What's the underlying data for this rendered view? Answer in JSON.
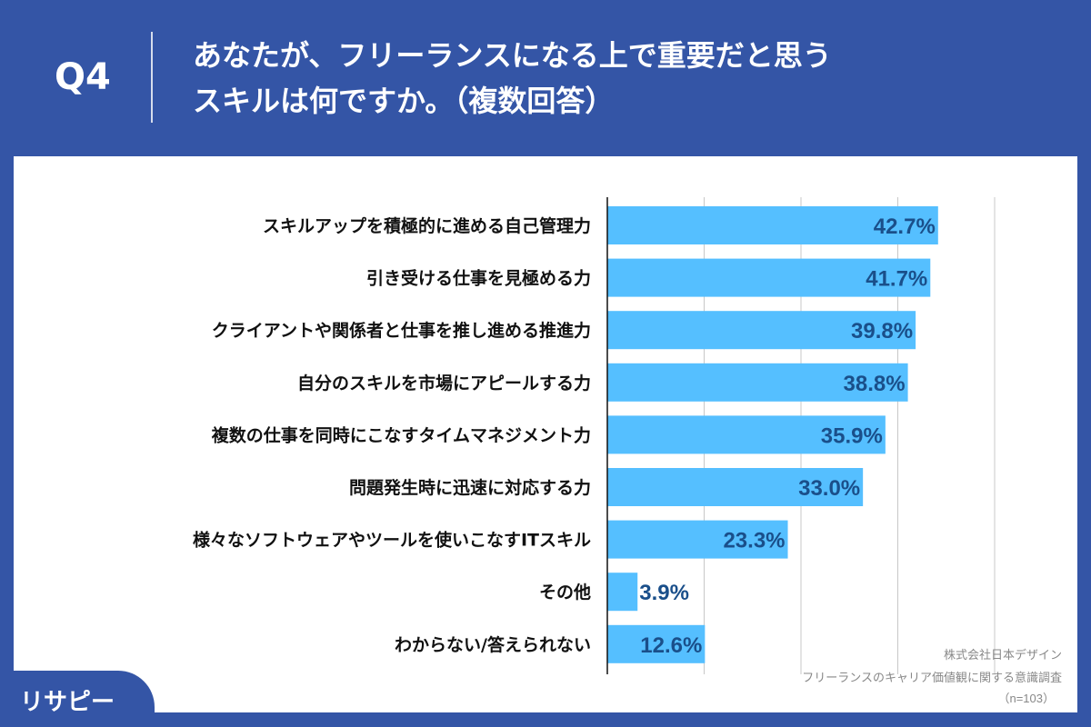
{
  "header": {
    "question_no": "Q4",
    "title": "あなたが、フリーランスになる上で重要だと思う\nスキルは何ですか。（複数回答）"
  },
  "chart_data": {
    "type": "bar",
    "orientation": "horizontal",
    "categories": [
      "スキルアップを積極的に進める自己管理力",
      "引き受ける仕事を見極める力",
      "クライアントや関係者と仕事を推し進める推進力",
      "自分のスキルを市場にアピールする力",
      "複数の仕事を同時にこなすタイムマネジメント力",
      "問題発生時に迅速に対応する力",
      "様々なソフトウェアやツールを使いこなすITスキル",
      "その他",
      "わからない/答えられない"
    ],
    "values": [
      42.7,
      41.7,
      39.8,
      38.8,
      35.9,
      33.0,
      23.3,
      3.9,
      12.6
    ],
    "data_labels": [
      "42.7%",
      "41.7%",
      "39.8%",
      "38.8%",
      "35.9%",
      "33.0%",
      "23.3%",
      "3.9%",
      "12.6%"
    ],
    "xlim": [
      0,
      50
    ],
    "grid_step": 12.5,
    "grid": true,
    "bar_color": "#55bfff",
    "label_color": "#1a4f8a"
  },
  "footer": {
    "source_company": "株式会社日本デザイン",
    "survey_name": "フリーランスのキャリア価値観に関する意識調査",
    "sample": "（n=103）",
    "logo": "リサピー"
  }
}
